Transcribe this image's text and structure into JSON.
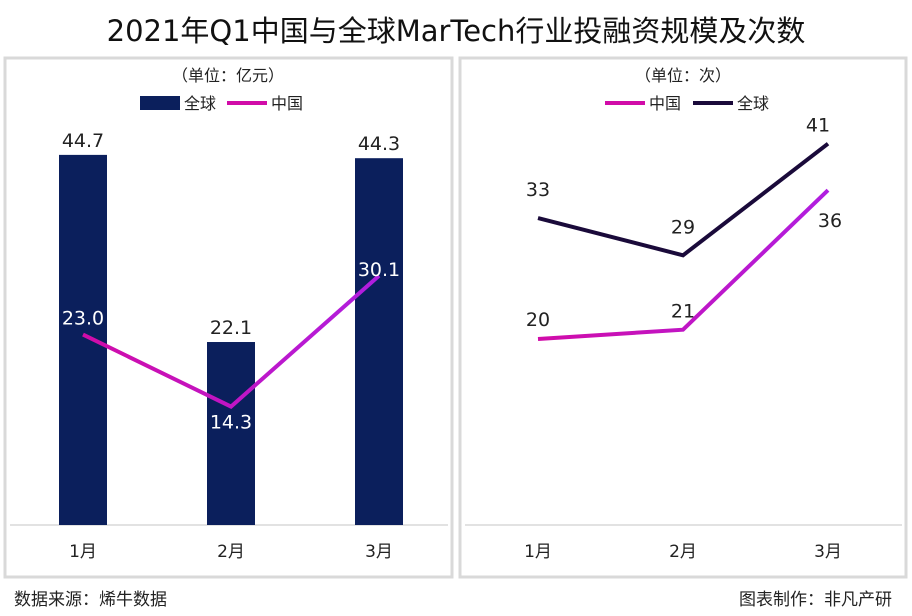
{
  "title": "2021年Q1中国与全球MarTech行业投融资规模及次数",
  "footer": {
    "source": "数据来源：烯牛数据",
    "maker": "图表制作：非凡产研"
  },
  "colors": {
    "global_bar": "#0b1f5c",
    "china": "#d10ca8",
    "china_end": "#a020d0",
    "global_line": "#1a0a3a",
    "panel_border": "#d9d9d9"
  },
  "chart_data": [
    {
      "type": "bar+line",
      "unit_label": "（单位：亿元）",
      "categories": [
        "1月",
        "2月",
        "3月"
      ],
      "series": [
        {
          "name": "全球",
          "type": "bar",
          "values": [
            44.7,
            22.1,
            44.3
          ],
          "labels": [
            "44.7",
            "22.1",
            "44.3"
          ]
        },
        {
          "name": "中国",
          "type": "line",
          "values": [
            23.0,
            14.3,
            30.1
          ],
          "labels": [
            "23.0",
            "14.3",
            "30.1"
          ]
        }
      ],
      "legend_position": "top-center",
      "grid": false
    },
    {
      "type": "line",
      "unit_label": "（单位：次）",
      "categories": [
        "1月",
        "2月",
        "3月"
      ],
      "series": [
        {
          "name": "中国",
          "values": [
            20,
            21,
            36
          ],
          "labels": [
            "20",
            "21",
            "36"
          ]
        },
        {
          "name": "全球",
          "values": [
            33,
            29,
            41
          ],
          "labels": [
            "33",
            "29",
            "41"
          ]
        }
      ],
      "legend_position": "top-center",
      "grid": false
    }
  ]
}
